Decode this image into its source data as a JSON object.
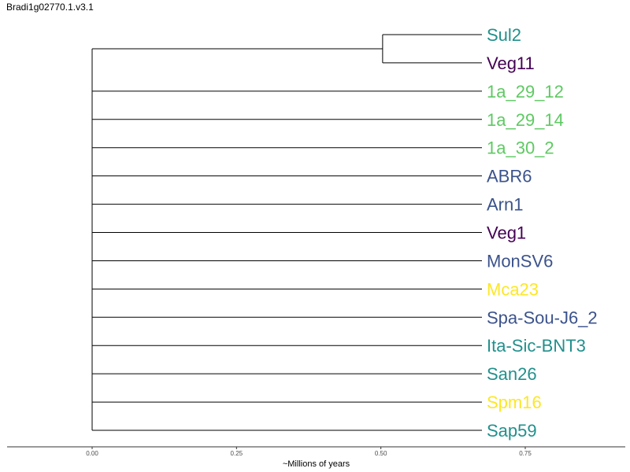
{
  "page_title": "Bradi1g02770.1.v3.1",
  "colors": {
    "purple": "#440154",
    "blue": "#3b528b",
    "teal": "#21908c",
    "green": "#5ec962",
    "yellow": "#fde725",
    "line": "#000000"
  },
  "chart_data": {
    "type": "tree",
    "xlabel": "~Millions of years",
    "xlim": [
      -0.3,
      0.92
    ],
    "ticks": [
      {
        "value": 0.0,
        "label": "0.00"
      },
      {
        "value": 0.25,
        "label": "0.25"
      },
      {
        "value": 0.5,
        "label": "0.50"
      },
      {
        "value": 0.75,
        "label": "0.75"
      }
    ],
    "root_x": 0.0,
    "tip_x": 0.675,
    "clade": {
      "name": "Sul2-Veg11",
      "node_x": 0.503,
      "tips": [
        "Sul2",
        "Veg11"
      ]
    },
    "tips": [
      {
        "name": "Sul2",
        "color": "teal"
      },
      {
        "name": "Veg11",
        "color": "purple"
      },
      {
        "name": "1a_29_12",
        "color": "green"
      },
      {
        "name": "1a_29_14",
        "color": "green"
      },
      {
        "name": "1a_30_2",
        "color": "green"
      },
      {
        "name": "ABR6",
        "color": "blue"
      },
      {
        "name": "Arn1",
        "color": "blue"
      },
      {
        "name": "Veg1",
        "color": "purple"
      },
      {
        "name": "MonSV6",
        "color": "blue"
      },
      {
        "name": "Mca23",
        "color": "yellow"
      },
      {
        "name": "Spa-Sou-J6_2",
        "color": "blue"
      },
      {
        "name": "Ita-Sic-BNT3",
        "color": "teal"
      },
      {
        "name": "San26",
        "color": "teal"
      },
      {
        "name": "Spm16",
        "color": "yellow"
      },
      {
        "name": "Sap59",
        "color": "teal"
      }
    ]
  }
}
